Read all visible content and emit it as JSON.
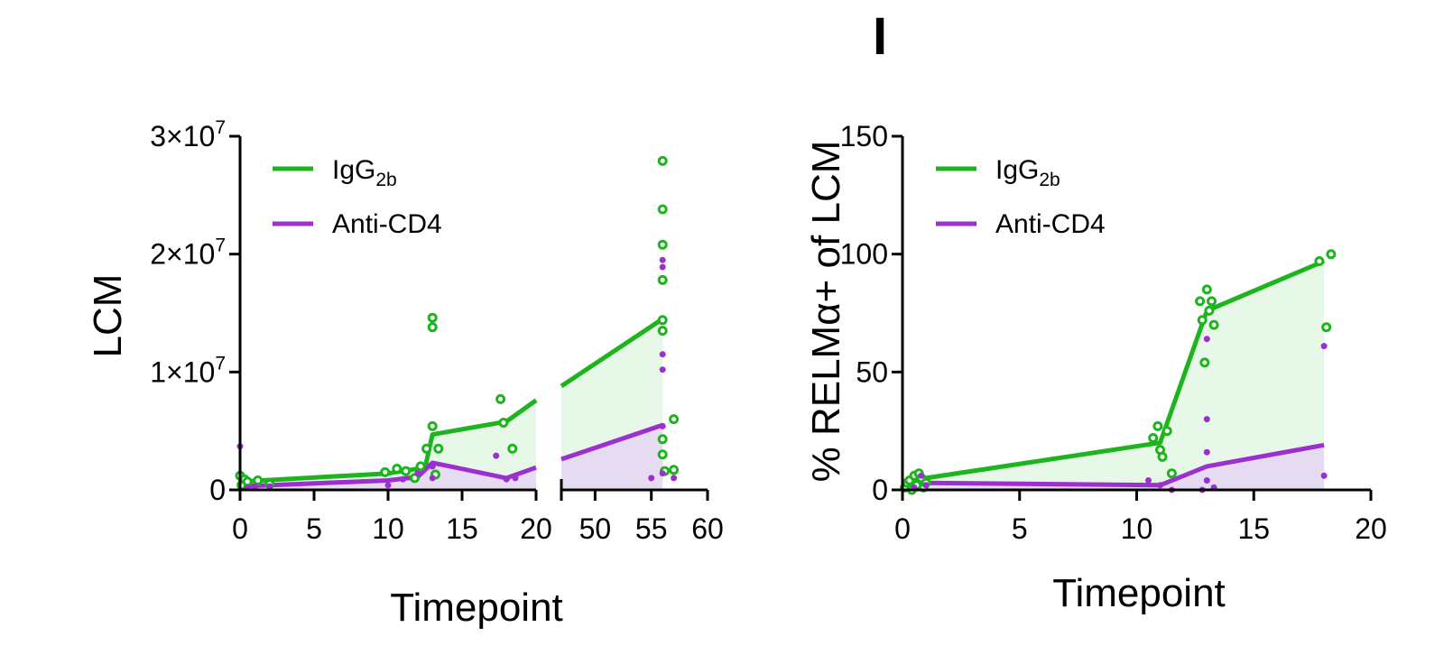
{
  "figure": {
    "panel_letter": "I"
  },
  "colors": {
    "igg": "#1eb41e",
    "anti": "#9b2fd0",
    "igg_fill": "#e4f7e4",
    "anti_fill": "#e6d8f2",
    "axis": "#000000"
  },
  "chart_data": [
    {
      "type": "line",
      "title": "",
      "xlabel": "Timepoint",
      "ylabel": "LCM",
      "broken_x_axis": true,
      "x_segments": [
        {
          "xlim": [
            0,
            20
          ],
          "ticks": [
            "0",
            "5",
            "10",
            "15",
            "20"
          ],
          "tick_values": [
            0,
            5,
            10,
            15,
            20
          ]
        },
        {
          "xlim": [
            47,
            60
          ],
          "ticks": [
            "50",
            "55",
            "60"
          ],
          "tick_values": [
            50,
            55,
            60
          ]
        }
      ],
      "ylim": [
        0,
        30000000
      ],
      "y_ticks": [
        {
          "value": 0,
          "base": "0",
          "exp": ""
        },
        {
          "value": 10000000,
          "base": "1×10",
          "exp": "7"
        },
        {
          "value": 20000000,
          "base": "2×10",
          "exp": "7"
        },
        {
          "value": 30000000,
          "base": "3×10",
          "exp": "7"
        }
      ],
      "legend": [
        {
          "main": "IgG",
          "sub": "2b",
          "series": "IgG2b"
        },
        {
          "main": "Anti-CD4",
          "sub": "",
          "series": "Anti-CD4"
        }
      ],
      "legend_position": "top-left",
      "series": [
        {
          "name": "IgG2b",
          "line": {
            "x": [
              0,
              10,
              12.5,
              13,
              18,
              20,
              47,
              56
            ],
            "y": [
              700000,
              1400000,
              1900000,
              4700000,
              5800000,
              7600000,
              8800000,
              14500000
            ]
          },
          "points": {
            "x": [
              0,
              0.1,
              0.3,
              0.5,
              1.2,
              2,
              9.8,
              10.6,
              11.2,
              11.8,
              12.2,
              12.6,
              13,
              13,
              13,
              13.2,
              13.4,
              17.6,
              17.8,
              18.4,
              56,
              56,
              56,
              56,
              56,
              56,
              56,
              56,
              56.2,
              57,
              57
            ],
            "y": [
              1200000,
              400000,
              900000,
              700000,
              800000,
              500000,
              1500000,
              1800000,
              1600000,
              1000000,
              2000000,
              3500000,
              14600000,
              13800000,
              5400000,
              1300000,
              3500000,
              7700000,
              5700000,
              3500000,
              27900000,
              23800000,
              20800000,
              17800000,
              14400000,
              13500000,
              4300000,
              3000000,
              1600000,
              6000000,
              1700000
            ]
          },
          "marker": "open-circle"
        },
        {
          "name": "Anti-CD4",
          "line": {
            "x": [
              0,
              10,
              12,
              13,
              18,
              20,
              47,
              56
            ],
            "y": [
              300000,
              800000,
              1100000,
              2300000,
              1000000,
              1900000,
              2600000,
              5500000
            ]
          },
          "points": {
            "x": [
              0,
              0.5,
              1,
              2,
              10,
              11,
              12,
              13,
              13,
              17.3,
              18,
              18.6,
              55,
              56,
              56,
              56,
              56,
              56,
              56,
              57
            ],
            "y": [
              3700000,
              200000,
              300000,
              300000,
              400000,
              900000,
              1400000,
              2000000,
              1000000,
              2900000,
              900000,
              1000000,
              1000000,
              19500000,
              18900000,
              11500000,
              10200000,
              5400000,
              1400000,
              1000000
            ]
          },
          "marker": "filled-circle"
        }
      ]
    },
    {
      "type": "line",
      "title": "",
      "xlabel": "Timepoint",
      "ylabel": "% RELMα+ of LCM",
      "xlim": [
        0,
        20
      ],
      "x_ticks": [
        "0",
        "5",
        "10",
        "15",
        "20"
      ],
      "x_tick_values": [
        0,
        5,
        10,
        15,
        20
      ],
      "ylim": [
        0,
        150
      ],
      "y_ticks": [
        "0",
        "50",
        "100",
        "150"
      ],
      "y_tick_values": [
        0,
        50,
        100,
        150
      ],
      "legend": [
        {
          "main": "IgG",
          "sub": "2b",
          "series": "IgG2b"
        },
        {
          "main": "Anti-CD4",
          "sub": "",
          "series": "Anti-CD4"
        }
      ],
      "legend_position": "top-left",
      "series": [
        {
          "name": "IgG2b",
          "line": {
            "x": [
              0,
              1,
              11,
              13,
              18
            ],
            "y": [
              2,
              5,
              20,
              76,
              97
            ]
          },
          "points": {
            "x": [
              0.1,
              0.2,
              0.3,
              0.4,
              0.5,
              0.6,
              0.7,
              0.8,
              0.9,
              1,
              10.7,
              10.9,
              11,
              11.1,
              11.3,
              11.5,
              12.7,
              12.8,
              12.9,
              13,
              13.1,
              13.2,
              13.3,
              17.8,
              18.1,
              18.3
            ],
            "y": [
              1,
              3,
              4,
              0,
              6,
              2,
              7,
              5,
              1,
              3,
              22,
              27,
              17,
              14,
              25,
              7,
              80,
              72,
              54,
              85,
              76,
              80,
              70,
              97,
              69,
              100
            ]
          },
          "marker": "open-circle"
        },
        {
          "name": "Anti-CD4",
          "line": {
            "x": [
              0,
              1,
              11,
              13,
              18
            ],
            "y": [
              1,
              3,
              2,
              10,
              19
            ]
          },
          "points": {
            "x": [
              0.5,
              0.8,
              1,
              10.5,
              11,
              11.5,
              12.8,
              13,
              13,
              13,
              13,
              13.3,
              18,
              18
            ],
            "y": [
              1,
              6,
              2,
              4,
              2,
              0,
              0,
              64,
              30,
              16,
              4,
              1,
              61,
              6
            ]
          },
          "marker": "filled-circle"
        }
      ]
    }
  ]
}
